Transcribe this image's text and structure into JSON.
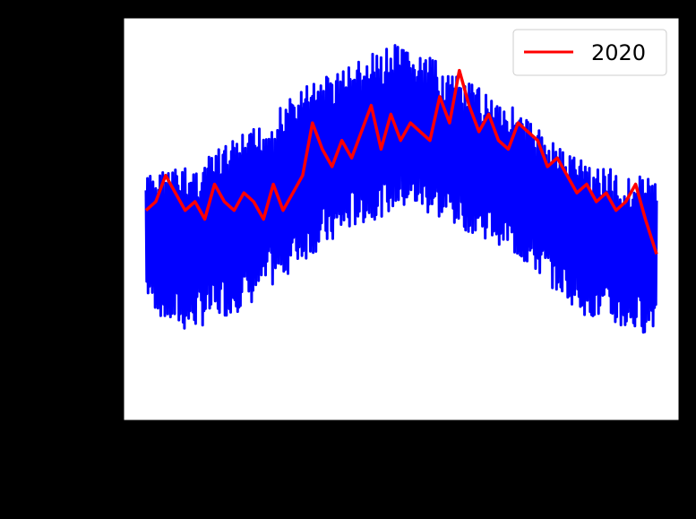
{
  "chart_data": {
    "type": "line",
    "title": "",
    "xlabel": "",
    "ylabel": "",
    "x_tick_labels": [],
    "y_tick_labels": [],
    "xlim": [
      1,
      366
    ],
    "ylim": [
      -6,
      40
    ],
    "grid": false,
    "legend_position": "top-right",
    "series": [
      {
        "name": "",
        "color": "#0000ff",
        "style": "historical band of daily values (all years), drawn as dense blue lines",
        "envelope_x": [
          1,
          15,
          30,
          45,
          60,
          75,
          90,
          105,
          120,
          135,
          150,
          165,
          180,
          195,
          210,
          225,
          240,
          255,
          270,
          285,
          300,
          315,
          330,
          345,
          360,
          366
        ],
        "upper": [
          22,
          23,
          23,
          24,
          26,
          27,
          29,
          31,
          33,
          34,
          35,
          36,
          37,
          36,
          35,
          33,
          32,
          31,
          29,
          27,
          25,
          24,
          23,
          22,
          22,
          22
        ],
        "lower": [
          8,
          5,
          4,
          5,
          6,
          7,
          9,
          11,
          13,
          14,
          16,
          17,
          18,
          18,
          17,
          16,
          15,
          14,
          12,
          10,
          8,
          6,
          5,
          4,
          4,
          5
        ]
      },
      {
        "name": "2020",
        "color": "#ff0000",
        "x": [
          1,
          8,
          15,
          22,
          29,
          36,
          43,
          50,
          57,
          64,
          71,
          78,
          85,
          92,
          99,
          106,
          113,
          120,
          127,
          134,
          141,
          148,
          155,
          162,
          169,
          176,
          183,
          190,
          197,
          204,
          211,
          218,
          225,
          232,
          239,
          246,
          253,
          260,
          267,
          274,
          281,
          288,
          295,
          302,
          309,
          316,
          323,
          330,
          337,
          344,
          351,
          358,
          366
        ],
        "y": [
          18,
          19,
          22,
          20,
          18,
          19,
          17,
          21,
          19,
          18,
          20,
          19,
          17,
          21,
          18,
          20,
          22,
          28,
          25,
          23,
          26,
          24,
          27,
          30,
          25,
          29,
          26,
          28,
          27,
          26,
          31,
          28,
          34,
          30,
          27,
          29,
          26,
          25,
          28,
          27,
          26,
          23,
          24,
          22,
          20,
          21,
          19,
          20,
          18,
          19,
          21,
          17,
          13
        ]
      }
    ]
  }
}
